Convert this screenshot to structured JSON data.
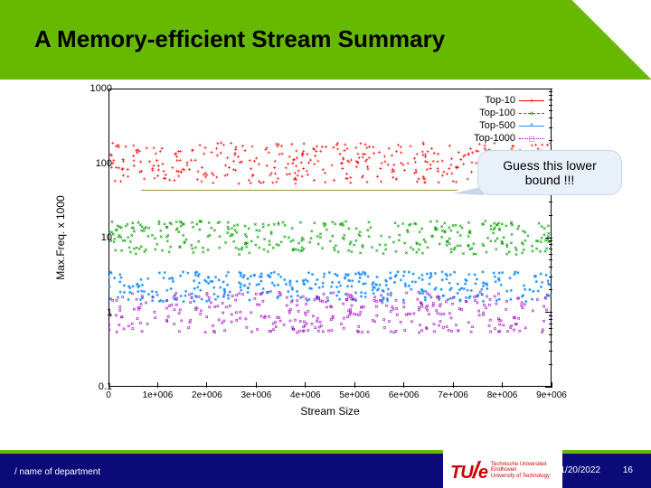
{
  "header": {
    "title": "A Memory-efficient Stream Summary",
    "band_color": "#67b900"
  },
  "chart": {
    "type": "scatter-noise-logy",
    "xlabel": "Stream Size",
    "ylabel": "Max.Freq. x 1000",
    "ylim": [
      0.1,
      1000
    ],
    "yscale": "log",
    "xlim": [
      0,
      9000000
    ],
    "xtick_step": 1000000,
    "xtick_labels": [
      "0",
      "1e+006",
      "2e+006",
      "3e+006",
      "4e+006",
      "5e+006",
      "6e+006",
      "7e+006",
      "8e+006",
      "9e+006"
    ],
    "ytick_labels": [
      "0.1",
      "1",
      "10",
      "100",
      "1000"
    ],
    "label_fontsize": 12,
    "tick_fontsize": 11,
    "background_color": "#ffffff",
    "border_color": "#000000",
    "series": [
      {
        "name": "Top-10",
        "color": "#ff0000",
        "band_center": 100,
        "band_spread": 0.55,
        "marker": "+",
        "dash": "none",
        "density": 420
      },
      {
        "name": "Top-100",
        "color": "#00a000",
        "band_center": 10,
        "band_spread": 0.45,
        "marker": "x",
        "dash": "dashed",
        "density": 380
      },
      {
        "name": "Top-500",
        "color": "#1e90ff",
        "band_center": 2.2,
        "band_spread": 0.4,
        "marker": "*",
        "dash": "none",
        "density": 380
      },
      {
        "name": "Top-1000",
        "color": "#a000c0",
        "band_center": 1.0,
        "band_spread": 0.55,
        "marker": "sq",
        "dash": "dotted",
        "density": 360
      }
    ],
    "legend_position": "top-right"
  },
  "callout": {
    "text": "Guess this lower bound !!!",
    "bg_color": "#e8f0fa",
    "border_color": "#c9d6e8",
    "line_color": "#a98c3a",
    "line_y_value": 55
  },
  "footer": {
    "dept_text": "/ name of department",
    "date": "1/20/2022",
    "page_number": "16",
    "logo_mark": "TU",
    "logo_suffix": "e",
    "logo_lines": [
      "Technische Universiteit",
      "Eindhoven",
      "University of Technology"
    ],
    "green_color": "#67b900",
    "blue_color": "#0a0a78",
    "logo_color": "#cc0000"
  }
}
